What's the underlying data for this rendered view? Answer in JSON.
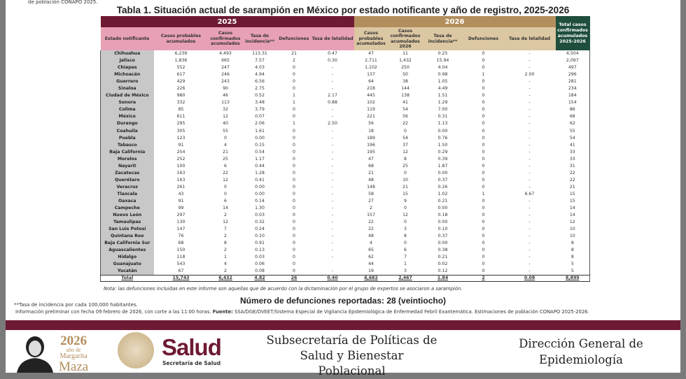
{
  "top_fragment": "de población CONAPO 2025.",
  "title": "Tabla 1. Situación actual de sarampión en México por estado notificante y año de registro, 2025-2026",
  "headers": {
    "year_2025": "2025",
    "year_2026": "2026",
    "total": "Total casos confirmados acumulados 2025-2026",
    "estado": "Estado notificante",
    "cols_2025": [
      "Casos probables acumulados",
      "Casos confirmados acumulados",
      "Tasa de incidencia**",
      "Defunciones",
      "Tasa de letalidad"
    ],
    "cols_2026": [
      "Casos probables acumulados",
      "Casos confirmados acumulados 2026",
      "Tasa de incidencia**",
      "Defunciones",
      "Tasa de letalidad"
    ]
  },
  "rows": [
    [
      "Chihuahua",
      "6,239",
      "4,493",
      "113.31",
      "21",
      "0.47",
      "47",
      "11",
      "0.25",
      "0",
      "-",
      "4,504"
    ],
    [
      "Jalisco",
      "1,836",
      "665",
      "7.57",
      "2",
      "0.30",
      "2,711",
      "1,432",
      "15.94",
      "0",
      "-",
      "2,097"
    ],
    [
      "Chiapas",
      "552",
      "247",
      "4.03",
      "0",
      "-",
      "1,102",
      "250",
      "4.04",
      "0",
      "-",
      "497"
    ],
    [
      "Michoacán",
      "617",
      "246",
      "4.94",
      "0",
      "-",
      "137",
      "50",
      "0.98",
      "1",
      "2.00",
      "296"
    ],
    [
      "Guerrero",
      "429",
      "243",
      "6.56",
      "0",
      "-",
      "64",
      "38",
      "1.05",
      "0",
      "-",
      "281"
    ],
    [
      "Sinaloa",
      "226",
      "90",
      "2.75",
      "0",
      "-",
      "218",
      "144",
      "4.49",
      "0",
      "-",
      "234"
    ],
    [
      "Ciudad de México",
      "980",
      "46",
      "0.52",
      "1",
      "2.17",
      "445",
      "138",
      "1.51",
      "0",
      "-",
      "184"
    ],
    [
      "Sonora",
      "332",
      "113",
      "3.48",
      "1",
      "0.88",
      "102",
      "41",
      "1.29",
      "0",
      "-",
      "154"
    ],
    [
      "Colima",
      "85",
      "32",
      "3.79",
      "0",
      "-",
      "119",
      "54",
      "7.00",
      "0",
      "-",
      "86"
    ],
    [
      "México",
      "611",
      "12",
      "0.07",
      "0",
      "-",
      "221",
      "56",
      "0.31",
      "0",
      "-",
      "68"
    ],
    [
      "Durango",
      "295",
      "40",
      "2.06",
      "1",
      "2.50",
      "56",
      "22",
      "1.13",
      "0",
      "-",
      "62"
    ],
    [
      "Coahuila",
      "305",
      "55",
      "1.61",
      "0",
      "-",
      "18",
      "0",
      "0.00",
      "0",
      "-",
      "55"
    ],
    [
      "Puebla",
      "123",
      "0",
      "0.00",
      "0",
      "-",
      "189",
      "54",
      "0.76",
      "0",
      "-",
      "54"
    ],
    [
      "Tabasco",
      "91",
      "4",
      "0.15",
      "0",
      "-",
      "196",
      "37",
      "1.50",
      "0",
      "-",
      "41"
    ],
    [
      "Baja California",
      "254",
      "21",
      "0.54",
      "0",
      "-",
      "195",
      "12",
      "0.29",
      "0",
      "-",
      "33"
    ],
    [
      "Morelos",
      "252",
      "25",
      "1.17",
      "0",
      "-",
      "47",
      "8",
      "0.39",
      "0",
      "-",
      "33"
    ],
    [
      "Nayarit",
      "100",
      "6",
      "0.44",
      "0",
      "-",
      "68",
      "25",
      "1.87",
      "0",
      "-",
      "31"
    ],
    [
      "Zacatecas",
      "163",
      "22",
      "1.28",
      "0",
      "-",
      "21",
      "0",
      "0.00",
      "0",
      "-",
      "22"
    ],
    [
      "Querétaro",
      "163",
      "12",
      "0.41",
      "0",
      "-",
      "48",
      "10",
      "0.37",
      "0",
      "-",
      "22"
    ],
    [
      "Veracruz",
      "261",
      "0",
      "0.00",
      "0",
      "-",
      "148",
      "21",
      "0.26",
      "0",
      "-",
      "21"
    ],
    [
      "Tlaxcala",
      "43",
      "0",
      "0.00",
      "0",
      "-",
      "58",
      "15",
      "1.02",
      "1",
      "6.67",
      "15"
    ],
    [
      "Oaxaca",
      "91",
      "6",
      "0.14",
      "0",
      "-",
      "27",
      "9",
      "0.21",
      "0",
      "-",
      "15"
    ],
    [
      "Campeche",
      "99",
      "14",
      "1.30",
      "0",
      "-",
      "2",
      "0",
      "0.00",
      "0",
      "-",
      "14"
    ],
    [
      "Nuevo León",
      "297",
      "2",
      "0.03",
      "0",
      "-",
      "157",
      "12",
      "0.18",
      "0",
      "-",
      "14"
    ],
    [
      "Tamaulipas",
      "130",
      "12",
      "0.32",
      "0",
      "-",
      "22",
      "0",
      "0.00",
      "0",
      "-",
      "12"
    ],
    [
      "San Luis Potosí",
      "147",
      "7",
      "0.24",
      "0",
      "-",
      "22",
      "3",
      "0.10",
      "0",
      "-",
      "10"
    ],
    [
      "Quintana Roo",
      "76",
      "2",
      "0.10",
      "0",
      "-",
      "48",
      "8",
      "0.37",
      "0",
      "-",
      "10"
    ],
    [
      "Baja California Sur",
      "68",
      "8",
      "0.91",
      "0",
      "-",
      "4",
      "0",
      "0.00",
      "0",
      "-",
      "8"
    ],
    [
      "Aguascalientes",
      "150",
      "2",
      "0.13",
      "0",
      "-",
      "65",
      "6",
      "0.38",
      "0",
      "-",
      "8"
    ],
    [
      "Hidalgo",
      "118",
      "1",
      "0.03",
      "0",
      "-",
      "62",
      "7",
      "0.21",
      "0",
      "-",
      "8"
    ],
    [
      "Guanajuato",
      "543",
      "4",
      "0.06",
      "0",
      "",
      "44",
      "1",
      "0.02",
      "0",
      "-",
      "5"
    ],
    [
      "Yucatán",
      "67",
      "2",
      "0.08",
      "0",
      "-",
      "19",
      "3",
      "0.12",
      "0",
      "-",
      "5"
    ]
  ],
  "total_row": [
    "Total",
    "15,743",
    "6,432",
    "4.82",
    "26",
    "0.40",
    "6,682",
    "2,467",
    "1.84",
    "2",
    "0.08",
    "8,899"
  ],
  "nota": "Nota: las defunciones incluidas en este informe son aquellas que de acuerdo con la dictaminación por el grupo de expertos se asociaron a sarampión.",
  "defunciones": "Número de defunciones reportadas: 28 (veintiocho)",
  "incidencia_note": "**Tasa de incidencia por cada 100,000 habitantes.",
  "info_prefix": "Información preliminar con fecha 09 febrero de 2026, con corte a las 11:00 horas.",
  "fuente_label": "Fuente:",
  "fuente_text": "SSA/DGE/DVEET/Sistema Especial de Vigilancia Epidemiológica de Enfermedad Febril Exantemática. Estimaciones de población CONAPO 2025-2026.",
  "footer": {
    "mm_year": "2026",
    "mm_line1": "año de",
    "mm_line2": "Margarita",
    "mm_line3": "Maza",
    "salud": "Salud",
    "salud_sub": "Secretaría de Salud",
    "subsecretaria": "Subsecretaría de Políticas de Salud y Bienestar Poblacional",
    "dge": "Dirección General de Epidemiología"
  },
  "colors": {
    "guinda": "#6e1a33",
    "dorado": "#b38e5d",
    "verde": "#1f4e3d",
    "rosa": "#e8a0b4",
    "beige": "#dcc7a3"
  }
}
